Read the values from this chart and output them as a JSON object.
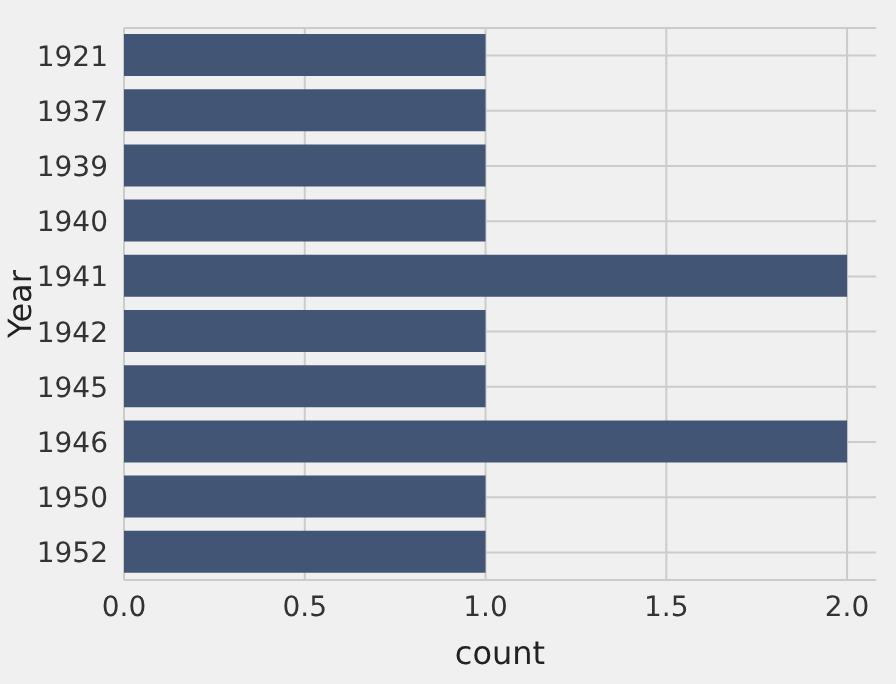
{
  "chart_data": {
    "type": "bar",
    "orientation": "horizontal",
    "xlabel": "count",
    "ylabel": "Year",
    "categories": [
      "1921",
      "1937",
      "1939",
      "1940",
      "1941",
      "1942",
      "1945",
      "1946",
      "1950",
      "1952"
    ],
    "values": [
      1,
      1,
      1,
      1,
      2,
      1,
      1,
      2,
      1,
      1
    ],
    "color": "#435574",
    "xlim": [
      0,
      2.08
    ],
    "xticks": [
      {
        "value": 0,
        "label": "0.0"
      },
      {
        "value": 0.5,
        "label": "0.5"
      },
      {
        "value": 1,
        "label": "1.0"
      },
      {
        "value": 1.5,
        "label": "1.5"
      },
      {
        "value": 2,
        "label": "2.0"
      }
    ],
    "grid": true
  }
}
